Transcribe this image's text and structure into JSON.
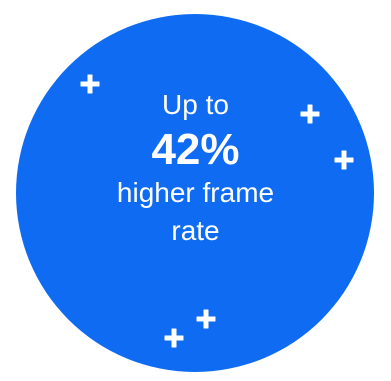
{
  "badge": {
    "line1": "Up to",
    "highlight": "42%",
    "line3": "higher frame",
    "line4": "rate"
  },
  "colors": {
    "circle": "#0f6cf2",
    "text": "#ffffff",
    "sparkle": "#ffffff",
    "background": "#ffffff"
  },
  "icons": [
    "plus-sparkle-icon",
    "plus-sparkle-icon",
    "plus-sparkle-icon",
    "plus-sparkle-icon",
    "plus-sparkle-icon"
  ]
}
